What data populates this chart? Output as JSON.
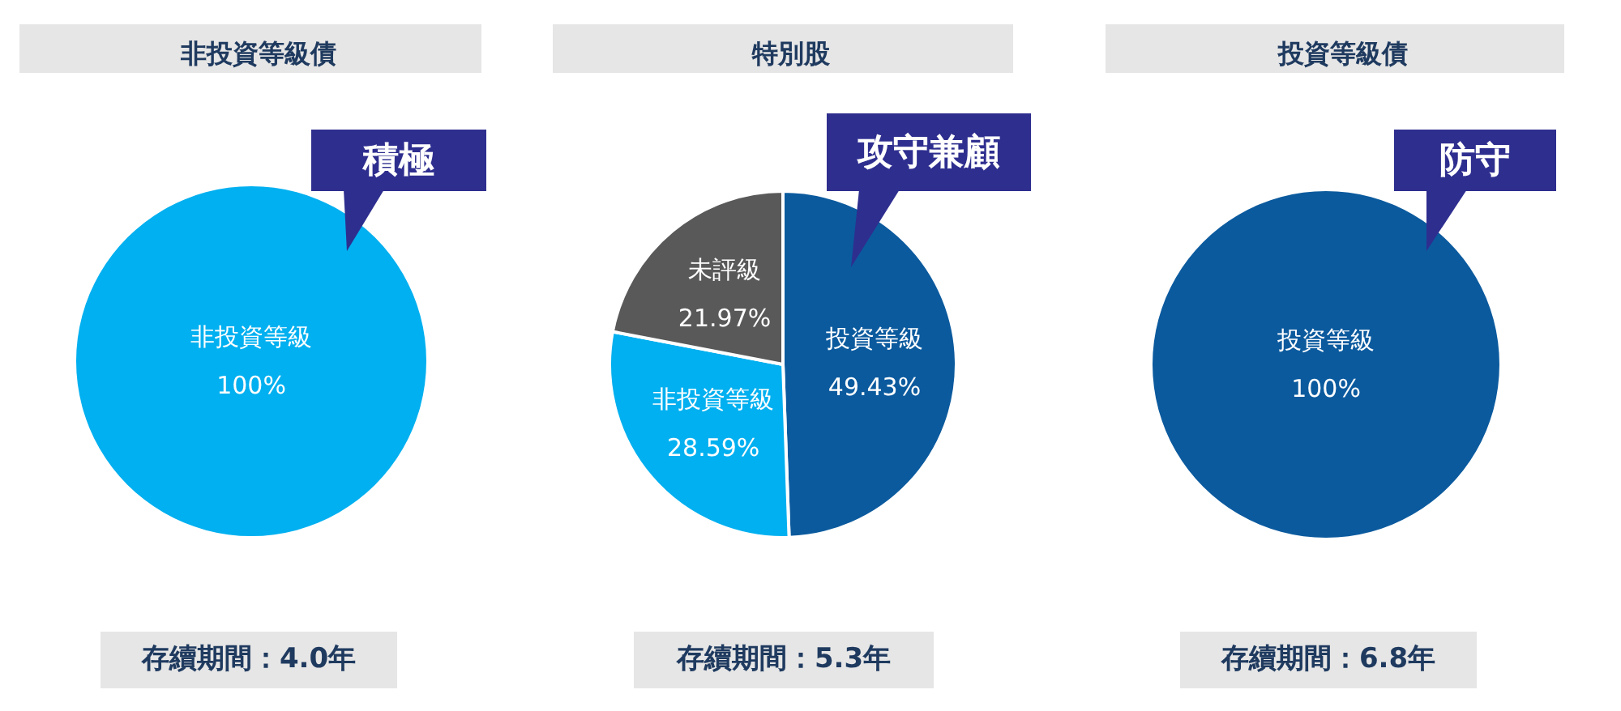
{
  "chart_data": [
    {
      "type": "pie",
      "title": "非投資等級債",
      "categories": [
        "非投資等級"
      ],
      "values": [
        100
      ],
      "colors": [
        "#00b0f0"
      ],
      "value_labels": [
        "100%"
      ],
      "annotations": [
        "積極",
        "存續期間：4.0年"
      ]
    },
    {
      "type": "pie",
      "title": "特別股",
      "categories": [
        "投資等級",
        "非投資等級",
        "未評級"
      ],
      "values": [
        49.43,
        28.59,
        21.97
      ],
      "colors": [
        "#0b5a9e",
        "#00b0f0",
        "#595959"
      ],
      "value_labels": [
        "49.43%",
        "28.59%",
        "21.97%"
      ],
      "annotations": [
        "攻守兼顧",
        "存續期間：5.3年"
      ]
    },
    {
      "type": "pie",
      "title": "投資等級債",
      "categories": [
        "投資等級"
      ],
      "values": [
        100
      ],
      "colors": [
        "#0b5a9e"
      ],
      "value_labels": [
        "100%"
      ],
      "annotations": [
        "防守",
        "存續期間：6.8年"
      ]
    }
  ]
}
